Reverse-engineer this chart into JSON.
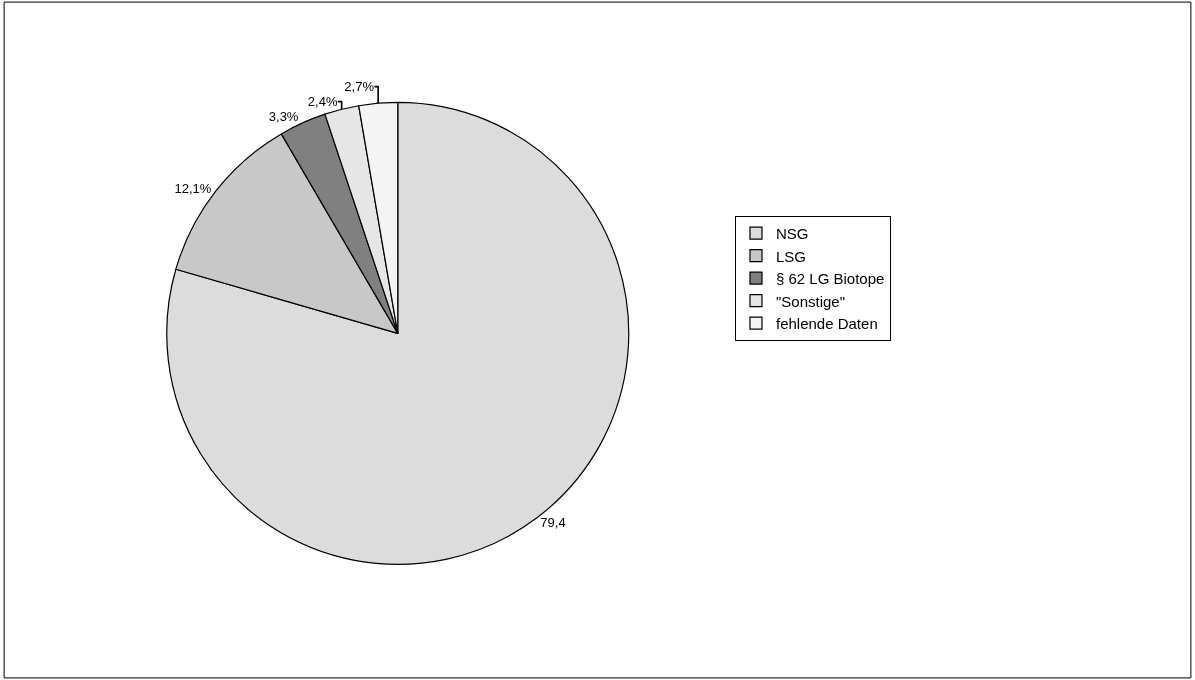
{
  "chart_data": {
    "type": "pie",
    "categories": [
      "NSG",
      "LSG",
      "§ 62 LG Biotope",
      "\"Sonstige\"",
      "fehlende Daten"
    ],
    "values": [
      79.4,
      12.1,
      3.3,
      2.4,
      2.7
    ],
    "value_labels": [
      "79,4",
      "12,1%",
      "3,3%",
      "2,4%",
      "2,7%"
    ],
    "colors": [
      "#dcdcdc",
      "#c8c8c8",
      "#808080",
      "#e6e6e6",
      "#f4f4f4"
    ],
    "legend": "right"
  }
}
